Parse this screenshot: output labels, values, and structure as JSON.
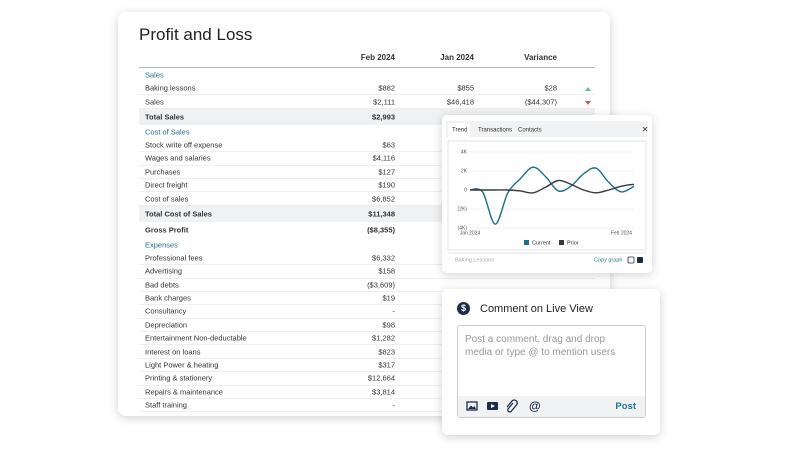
{
  "report": {
    "title": "Profit and Loss",
    "columns": [
      "Feb 2024",
      "Jan 2024",
      "Variance"
    ],
    "rows": [
      {
        "style": "section",
        "cells": [
          "Sales"
        ]
      },
      {
        "cells": [
          "Baking lessons",
          "$882",
          "$855",
          "$28"
        ]
      },
      {
        "cells": [
          "Sales",
          "$2,111",
          "$46,418",
          "($44,307)"
        ]
      },
      {
        "style": "total",
        "cells": [
          "Total Sales",
          "$2,993"
        ]
      },
      {
        "style": "section",
        "cells": [
          "Cost of Sales"
        ]
      },
      {
        "cells": [
          "Stock write off expense",
          "$63"
        ]
      },
      {
        "cells": [
          "Wages and salaries",
          "$4,116"
        ]
      },
      {
        "cells": [
          "Purchases",
          "$127"
        ]
      },
      {
        "cells": [
          "Direct freight",
          "$190"
        ]
      },
      {
        "cells": [
          "Cost of sales",
          "$6,852"
        ]
      },
      {
        "style": "total",
        "cells": [
          "Total Cost of Sales",
          "$11,348"
        ]
      },
      {
        "style": "gross",
        "cells": [
          "Gross Profit",
          "($8,355)"
        ]
      },
      {
        "style": "section",
        "cells": [
          "Expenses"
        ]
      },
      {
        "cells": [
          "Professional fees",
          "$6,332"
        ]
      },
      {
        "cells": [
          "Advertising",
          "$158"
        ]
      },
      {
        "cells": [
          "Bad debts",
          "($3,609)"
        ]
      },
      {
        "cells": [
          "Bank charges",
          "$19"
        ]
      },
      {
        "cells": [
          "Consultancy",
          "-"
        ]
      },
      {
        "cells": [
          "Depreciation",
          "$98"
        ]
      },
      {
        "cells": [
          "Entertainment Non-deductable",
          "$1,282"
        ]
      },
      {
        "cells": [
          "Interest on loans",
          "$823"
        ]
      },
      {
        "cells": [
          "Light Power & heating",
          "$317"
        ]
      },
      {
        "cells": [
          "Printing & stationery",
          "$12,664"
        ]
      },
      {
        "cells": [
          "Repairs & maintenance",
          "$3,814"
        ]
      },
      {
        "cells": [
          "Staff training",
          "-"
        ]
      }
    ]
  },
  "trend_popup": {
    "tabs": [
      "Trend",
      "Transactions",
      "Contacts"
    ],
    "close": "✕",
    "chart": {
      "type": "line",
      "categories": [
        "Jan 2024",
        null,
        null,
        null,
        null,
        null,
        null,
        null,
        null,
        null,
        null,
        null,
        "Feb 2024",
        null
      ],
      "series": [
        {
          "name": "Current",
          "color": "#1f6f8b",
          "values": [
            0,
            -200,
            -3600,
            -300,
            1200,
            2400,
            1400,
            -100,
            400,
            1700,
            2300,
            800,
            -200,
            400
          ]
        },
        {
          "name": "Prior",
          "color": "#3a3a3a",
          "values": [
            0,
            0,
            0,
            0,
            -100,
            -300,
            300,
            1000,
            600,
            0,
            -300,
            0,
            400,
            600
          ]
        }
      ],
      "ylim": [
        -4000,
        4000
      ],
      "yticks": [
        {
          "value": 4000,
          "label": "4K"
        },
        {
          "value": 2000,
          "label": "2K"
        },
        0,
        {
          "value": -2000,
          "label": "(2K)"
        },
        {
          "value": -4000,
          "label": "(4K)"
        }
      ],
      "grid": true
    },
    "footer_left": "Baking Lessons",
    "copy_graph": "Copy graph"
  },
  "comment": {
    "icon": "$",
    "title": "Comment on Live View",
    "placeholder": "Post a comment, drag and drop media or type @ to mention users",
    "mention": "@",
    "post": "Post"
  }
}
